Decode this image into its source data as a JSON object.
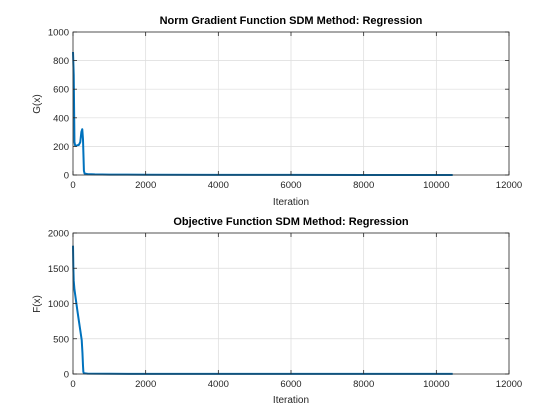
{
  "chart_data": [
    {
      "type": "line",
      "title": "Norm Gradient Function SDM Method: Regression",
      "xlabel": "Iteration",
      "ylabel": "G(x)",
      "xlim": [
        0,
        12000
      ],
      "ylim": [
        0,
        1000
      ],
      "xticks": [
        0,
        2000,
        4000,
        6000,
        8000,
        10000,
        12000
      ],
      "yticks": [
        0,
        200,
        400,
        600,
        800,
        1000
      ],
      "grid": true,
      "color": "#0072bd",
      "series": [
        {
          "x": [
            0,
            20,
            40,
            60,
            90,
            120,
            160,
            200,
            230,
            255,
            275,
            290,
            300,
            320,
            400,
            600,
            1000,
            2000,
            4000,
            6000,
            8000,
            10000,
            10450
          ],
          "y": [
            860,
            700,
            230,
            205,
            205,
            208,
            210,
            230,
            300,
            320,
            250,
            120,
            30,
            10,
            6,
            4,
            3,
            2,
            1,
            0.5,
            0.3,
            0.2,
            0.2
          ]
        }
      ]
    },
    {
      "type": "line",
      "title": "Objective Function SDM Method: Regression",
      "xlabel": "Iteration",
      "ylabel": "F(x)",
      "xlim": [
        0,
        12000
      ],
      "ylim": [
        0,
        2000
      ],
      "xticks": [
        0,
        2000,
        4000,
        6000,
        8000,
        10000,
        12000
      ],
      "yticks": [
        0,
        500,
        1000,
        1500,
        2000
      ],
      "grid": true,
      "color": "#0072bd",
      "series": [
        {
          "x": [
            0,
            10,
            20,
            40,
            80,
            120,
            160,
            200,
            240,
            260,
            275,
            285,
            300,
            400,
            1000,
            2000,
            4000,
            6000,
            8000,
            10000,
            10450
          ],
          "y": [
            1820,
            1500,
            1320,
            1200,
            1050,
            900,
            760,
            620,
            480,
            300,
            120,
            30,
            10,
            5,
            3,
            2,
            1,
            1,
            1,
            1,
            1
          ]
        }
      ]
    }
  ]
}
